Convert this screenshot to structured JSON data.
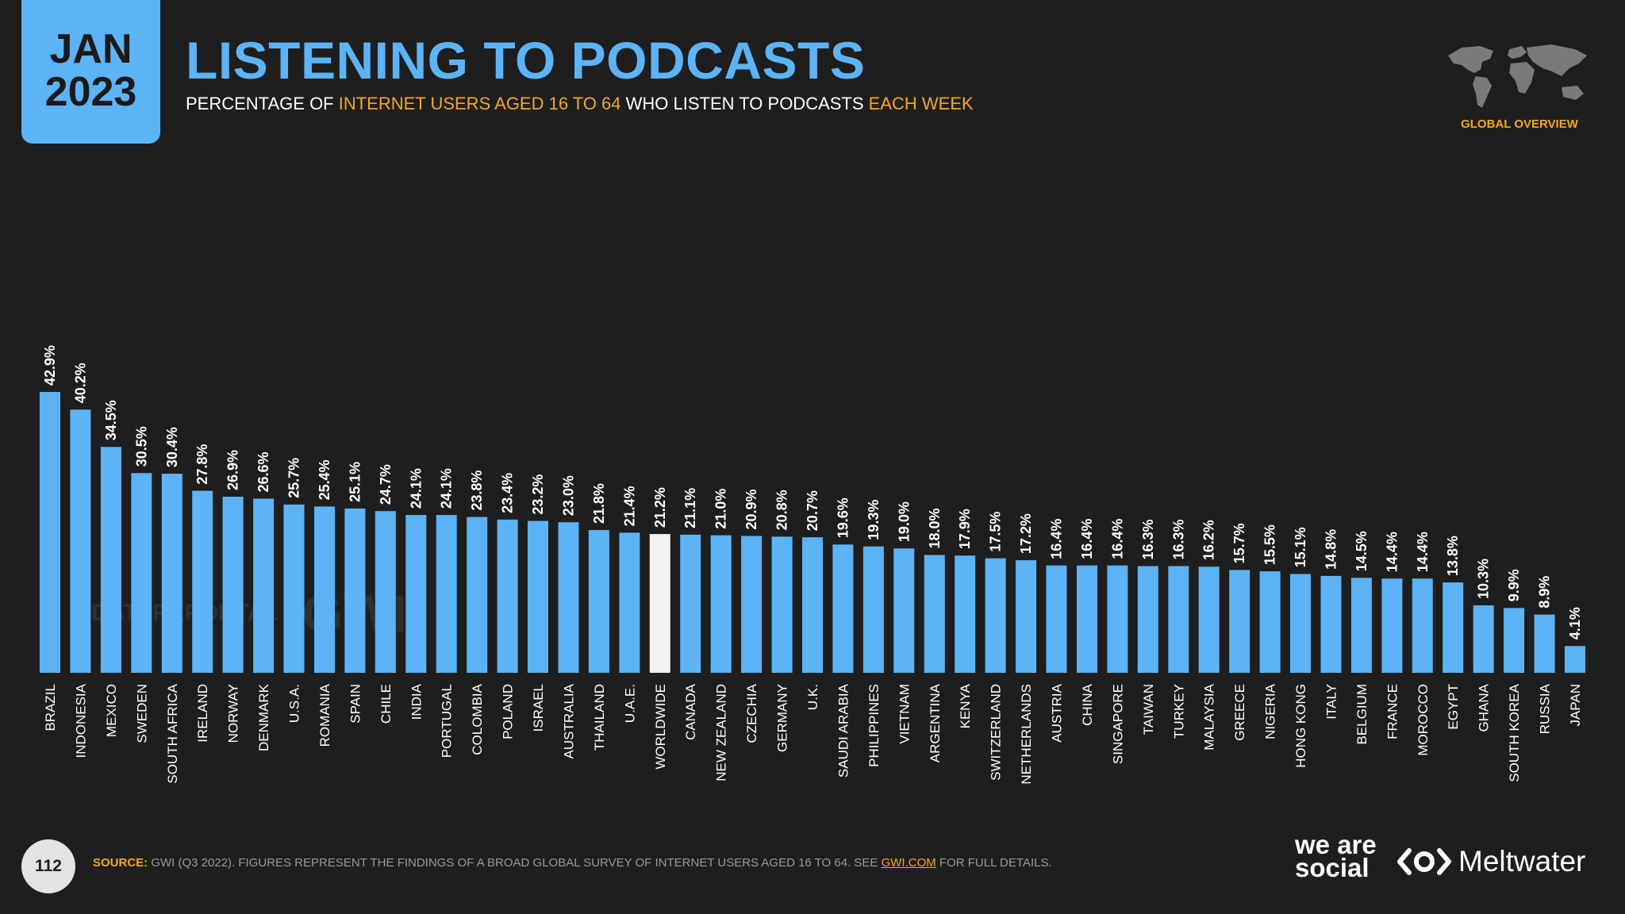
{
  "header": {
    "month": "JAN",
    "year": "2023",
    "title": "LISTENING TO PODCASTS",
    "subtitle_parts": [
      "PERCENTAGE OF ",
      "INTERNET USERS AGED 16 TO 64",
      " WHO LISTEN TO PODCASTS ",
      "EACH WEEK"
    ],
    "region": "GLOBAL OVERVIEW"
  },
  "watermark": {
    "datareportal": "DATAREPORTAL",
    "gwi": "GWI."
  },
  "footer": {
    "page_number": "112",
    "source_label": "SOURCE:",
    "source_text": " GWI (Q3 2022). FIGURES REPRESENT THE FINDINGS OF A BROAD GLOBAL SURVEY OF INTERNET USERS AGED 16 TO 64. SEE ",
    "source_link": "GWI.COM",
    "source_end": " FOR FULL DETAILS.",
    "brand_1": "we are social",
    "brand_2": "Meltwater"
  },
  "colors": {
    "bar": "#5cb3f5",
    "highlight_bar": "#f2f2f2",
    "accent": "#f5a623",
    "background": "#1e1e1e"
  },
  "chart_data": {
    "type": "bar",
    "ylim": [
      0,
      42.9
    ],
    "highlight": "WORLDWIDE",
    "value_suffix": "%",
    "categories": [
      "BRAZIL",
      "INDONESIA",
      "MEXICO",
      "SWEDEN",
      "SOUTH AFRICA",
      "IRELAND",
      "NORWAY",
      "DENMARK",
      "U.S.A.",
      "ROMANIA",
      "SPAIN",
      "CHILE",
      "INDIA",
      "PORTUGAL",
      "COLOMBIA",
      "POLAND",
      "ISRAEL",
      "AUSTRALIA",
      "THAILAND",
      "U.A.E.",
      "WORLDWIDE",
      "CANADA",
      "NEW ZEALAND",
      "CZECHIA",
      "GERMANY",
      "U.K.",
      "SAUDI ARABIA",
      "PHILIPPINES",
      "VIETNAM",
      "ARGENTINA",
      "KENYA",
      "SWITZERLAND",
      "NETHERLANDS",
      "AUSTRIA",
      "CHINA",
      "SINGAPORE",
      "TAIWAN",
      "TURKEY",
      "MALAYSIA",
      "GREECE",
      "NIGERIA",
      "HONG KONG",
      "ITALY",
      "BELGIUM",
      "FRANCE",
      "MOROCCO",
      "EGYPT",
      "GHANA",
      "SOUTH KOREA",
      "RUSSIA",
      "JAPAN"
    ],
    "values": [
      42.9,
      40.2,
      34.5,
      30.5,
      30.4,
      27.8,
      26.9,
      26.6,
      25.7,
      25.4,
      25.1,
      24.7,
      24.1,
      24.1,
      23.8,
      23.4,
      23.2,
      23.0,
      21.8,
      21.4,
      21.2,
      21.1,
      21.0,
      20.9,
      20.8,
      20.7,
      19.6,
      19.3,
      19.0,
      18.0,
      17.9,
      17.5,
      17.2,
      16.4,
      16.4,
      16.4,
      16.3,
      16.3,
      16.2,
      15.7,
      15.5,
      15.1,
      14.8,
      14.5,
      14.4,
      14.4,
      13.8,
      10.3,
      9.9,
      8.9,
      4.1
    ]
  }
}
